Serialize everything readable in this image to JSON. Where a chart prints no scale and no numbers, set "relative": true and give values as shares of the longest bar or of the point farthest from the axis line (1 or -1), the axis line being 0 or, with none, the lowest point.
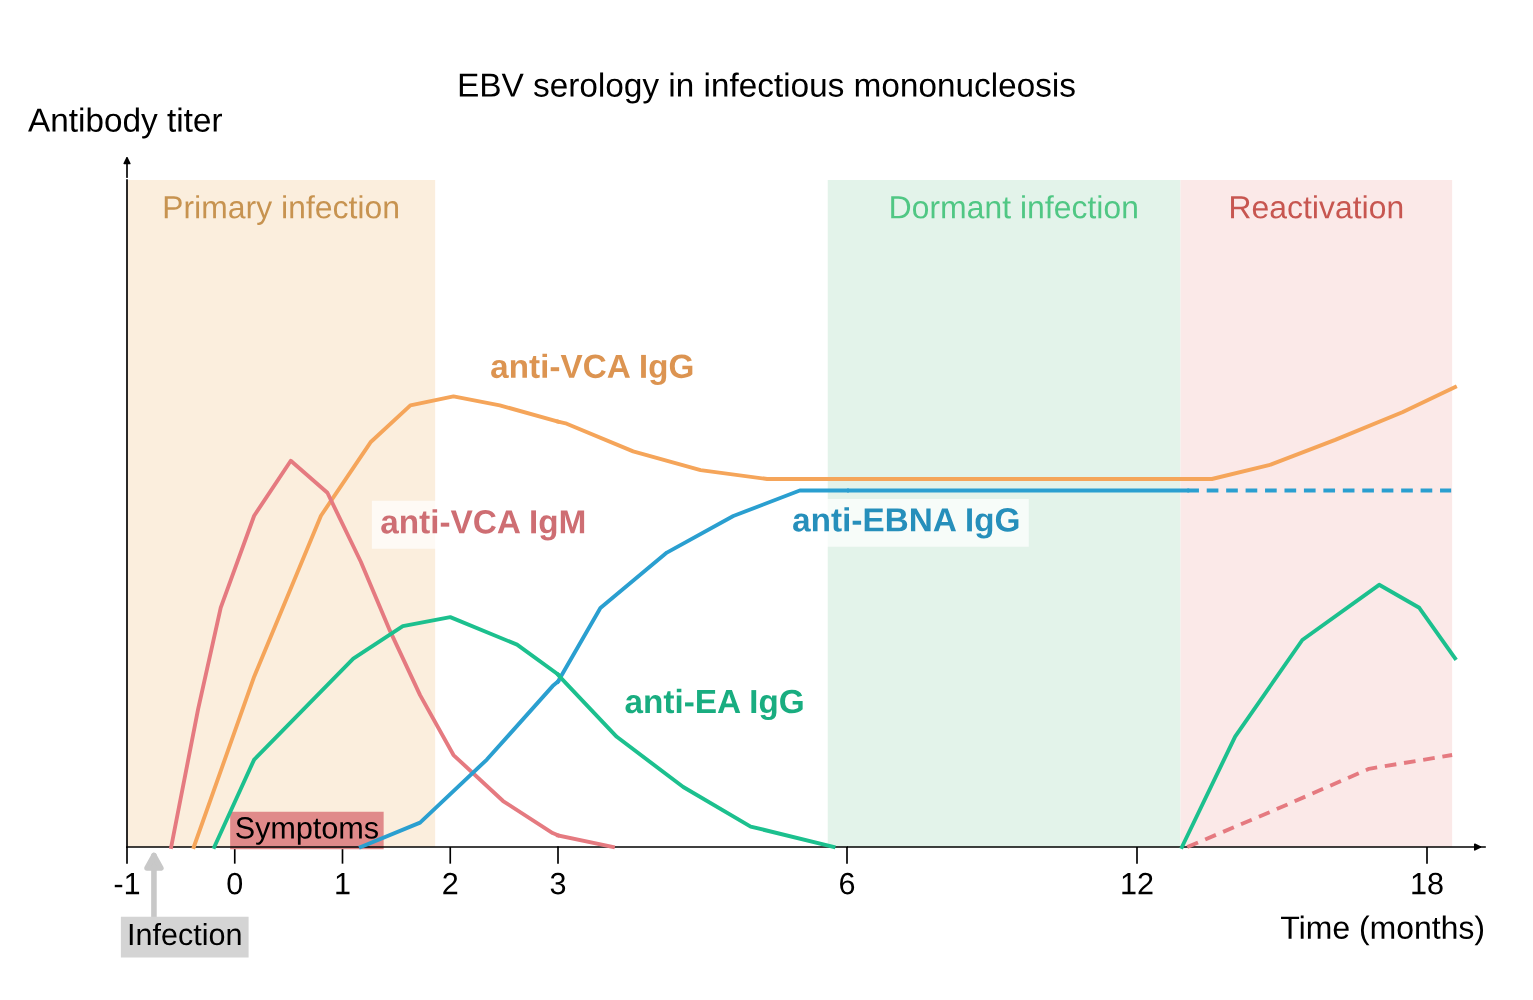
{
  "chart_data": [
    {
      "type": "line",
      "title": "EBV serology in infectious mononucleosis",
      "ylabel": "Antibody titer",
      "relative": true,
      "xlim": [
        -1,
        3
      ],
      "xticks": [
        -1,
        0,
        1,
        2
      ],
      "series": [
        {
          "name": "anti-VCA IgG",
          "color": "#f5a55a",
          "x": [
            -0.38,
            0.18,
            0.8,
            1.26,
            1.63,
            2.03,
            2.46,
            3
          ],
          "values": [
            0,
            0.378,
            0.735,
            0.898,
            0.98,
            1,
            0.98,
            0.944
          ]
        },
        {
          "name": "anti-VCA IgM",
          "color": "#e57a80",
          "x": [
            -0.59,
            -0.34,
            -0.13,
            0.18,
            0.52,
            0.86,
            1.17,
            1.44,
            1.72,
            2.03,
            2.49,
            2.95,
            3
          ],
          "values": [
            0,
            0.306,
            0.531,
            0.735,
            0.857,
            0.786,
            0.633,
            0.48,
            0.337,
            0.204,
            0.102,
            0.031,
            0.026
          ]
        },
        {
          "color": "#2a9fd0",
          "x": [
            1.17,
            1.72,
            2.34,
            2.95,
            3
          ],
          "values": [
            0,
            0.054,
            0.194,
            0.357,
            0.367
          ]
        },
        {
          "color": "#1cc08e",
          "x": [
            -0.19,
            0.18,
            0.64,
            1.1,
            1.56,
            2.0,
            2.62,
            3
          ],
          "values": [
            0,
            0.194,
            0.306,
            0.418,
            0.49,
            0.51,
            0.449,
            0.383
          ]
        }
      ],
      "bands": [
        {
          "axis": "x",
          "from": -1,
          "to": 1.86,
          "label": "Primary infection",
          "color": "#fbeedd"
        }
      ],
      "annotations": [
        {
          "text": "Symptoms",
          "x": 0,
          "y": 0
        },
        {
          "text": "Infection",
          "x": -0.75,
          "y": 0
        }
      ]
    },
    {
      "type": "line",
      "relative": true,
      "xlim": [
        3,
        6
      ],
      "xticks": [
        3,
        6
      ],
      "series": [
        {
          "color": "#f5a55a",
          "x": [
            3,
            3.09,
            3.78,
            4.48,
            5.17,
            6
          ],
          "values": [
            1,
            0.995,
            0.93,
            0.886,
            0.865,
            0.865
          ]
        },
        {
          "color": "#e57a80",
          "x": [
            3,
            3.57
          ],
          "values": [
            0.027,
            0
          ]
        },
        {
          "name": "anti-EBNA IgG",
          "color": "#2a9fd0",
          "x": [
            3,
            3.44,
            4.13,
            4.82,
            5.51,
            6
          ],
          "values": [
            0.389,
            0.562,
            0.692,
            0.778,
            0.838,
            0.838
          ]
        },
        {
          "name": "anti-EA IgG",
          "color": "#1cc08e",
          "x": [
            3,
            3.02,
            3.61,
            4.3,
            5.0,
            5.86
          ],
          "values": [
            0.405,
            0.4,
            0.259,
            0.141,
            0.048,
            0
          ]
        }
      ],
      "bands": [
        {
          "axis": "x",
          "from": 5.8,
          "to": 6,
          "color": "#e3f3ea"
        }
      ]
    },
    {
      "type": "line",
      "relative": true,
      "xlabel": "Time (months)",
      "xlim": [
        6,
        19.2
      ],
      "xticks": [
        12,
        18
      ],
      "series": [
        {
          "color": "#f5a55a",
          "x": [
            6,
            13.35,
            13.55,
            14.73,
            16.1,
            17.49,
            18.58
          ],
          "values": [
            0.8,
            0.8,
            0.8,
            0.83,
            0.885,
            0.945,
            1.0
          ]
        },
        {
          "color": "#2a9fd0",
          "x": [
            6,
            13.04
          ],
          "values": [
            0.775,
            0.775
          ]
        },
        {
          "color": "#2a9fd0",
          "line_style": "dashed",
          "x": [
            13.04,
            18.5
          ],
          "values": [
            0.775,
            0.775
          ]
        },
        {
          "color": "#1cc08e",
          "x": [
            12.93,
            14.03,
            15.42,
            17.01,
            17.84,
            18.58
          ],
          "values": [
            0,
            0.24,
            0.45,
            0.57,
            0.52,
            0.41
          ]
        },
        {
          "color": "#e57a80",
          "line_style": "dashed",
          "x": [
            13.04,
            14.73,
            16.8,
            18.52
          ],
          "values": [
            0,
            0.075,
            0.17,
            0.2
          ]
        }
      ],
      "bands": [
        {
          "axis": "x",
          "from": 6,
          "to": 12.9,
          "label": "Dormant infection",
          "color": "#e3f3ea"
        },
        {
          "axis": "x",
          "from": 12.9,
          "to": 18.52,
          "label": "Reactivation",
          "color": "#fbe9e8"
        }
      ]
    }
  ]
}
